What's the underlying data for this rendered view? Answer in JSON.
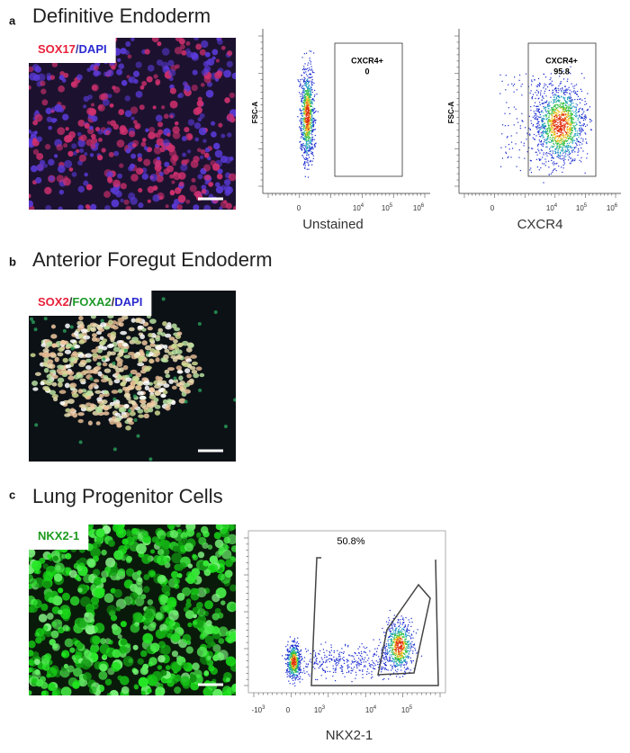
{
  "panels": [
    {
      "label": "a",
      "title": "Definitive Endoderm",
      "stain": [
        {
          "text": "SOX17",
          "color": "#e8203a"
        },
        {
          "text": "/",
          "color": "#3a3aa0"
        },
        {
          "text": "DAPI",
          "color": "#2a2ad0"
        }
      ],
      "flow": [
        {
          "gate_name": "CXCR4+",
          "gate_value": "0",
          "y_label": "FSC-A",
          "x_label": "Unstained",
          "x_ticks": [
            [
              "0"
            ],
            [
              "10",
              "4"
            ],
            [
              "10",
              "5"
            ],
            [
              "10",
              "6"
            ]
          ]
        },
        {
          "gate_name": "CXCR4+",
          "gate_value": "95.8",
          "y_label": "FSC-A",
          "x_label": "CXCR4",
          "x_ticks": [
            [
              "0"
            ],
            [
              "10",
              "4"
            ],
            [
              "10",
              "5"
            ],
            [
              "10",
              "6"
            ]
          ]
        }
      ]
    },
    {
      "label": "b",
      "title": "Anterior Foregut Endoderm",
      "stain": [
        {
          "text": "SOX2",
          "color": "#e8203a"
        },
        {
          "text": "/",
          "color": "#333333"
        },
        {
          "text": "FOXA2",
          "color": "#1e9a2a"
        },
        {
          "text": "/",
          "color": "#333333"
        },
        {
          "text": "DAPI",
          "color": "#2a2ad0"
        }
      ]
    },
    {
      "label": "c",
      "title": "Lung Progenitor Cells",
      "stain": [
        {
          "text": "NKX2-1",
          "color": "#1e9a1e"
        }
      ],
      "flow": [
        {
          "gate_value": "50.8%",
          "x_label": "NKX2-1",
          "x_ticks": [
            [
              "-10",
              "3"
            ],
            [
              "0"
            ],
            [
              "10",
              "3"
            ],
            [
              "10",
              "4"
            ],
            [
              "10",
              "5"
            ]
          ]
        }
      ]
    }
  ]
}
